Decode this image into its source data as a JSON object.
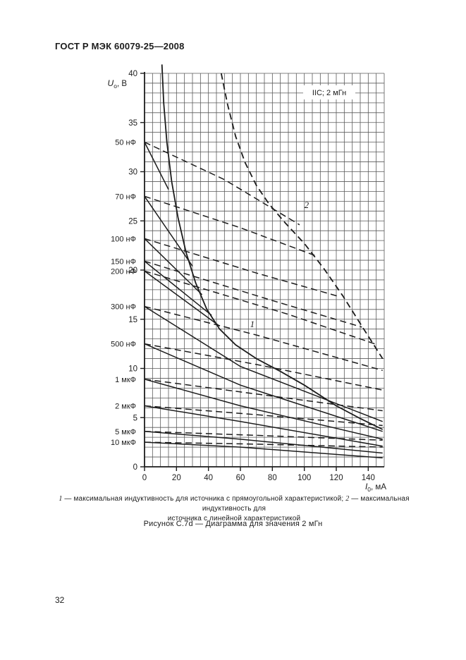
{
  "page": {
    "header": "ГОСТ Р МЭК 60079-25—2008",
    "page_number": "32"
  },
  "caption": {
    "item1_num": "1",
    "item1_text": " — максимальная индуктивность для источника с прямоугольной характеристикой; ",
    "item2_num": "2",
    "item2_text": " — максимальная индуктивность для",
    "line2": "источника с линейной характеристикой"
  },
  "figure_caption": "Рисунок С.7d — Диаграмма для значения 2 мГн",
  "chart_data": {
    "type": "line",
    "annotation_box": "IIC; 2 мГн",
    "ylabel": {
      "symbol": "U",
      "subscript": "o",
      "unit": ", В"
    },
    "xlabel": {
      "symbol": "I",
      "subscript": "0",
      "unit": ", мА"
    },
    "xlim": [
      0,
      150
    ],
    "ylim": [
      0,
      40
    ],
    "xticks": [
      0,
      20,
      40,
      60,
      80,
      100,
      120,
      140
    ],
    "yticks": [
      0,
      5,
      10,
      15,
      20,
      25,
      30,
      35,
      40
    ],
    "x_minor_step": 5,
    "y_minor_step": 1,
    "grid": "on",
    "limit_curves": [
      {
        "label": "1",
        "style": "solid",
        "desc": "максимальная индуктивность для источника с прямоугольной характеристикой",
        "label_pos": [
          66,
          14.2
        ],
        "points": [
          [
            10.9,
            40.9
          ],
          [
            12,
            37
          ],
          [
            14,
            33
          ],
          [
            17,
            29
          ],
          [
            21,
            25.3
          ],
          [
            26,
            21.8
          ],
          [
            32,
            18.7
          ],
          [
            39,
            16
          ],
          [
            47,
            14
          ],
          [
            57,
            12.4
          ],
          [
            70,
            11
          ],
          [
            85,
            9.7
          ],
          [
            100,
            8.3
          ],
          [
            120,
            6.2
          ],
          [
            135,
            4.9
          ],
          [
            149,
            3.8
          ]
        ]
      },
      {
        "label": "2",
        "style": "dashed",
        "desc": "максимальная индуктивность для источника с линейной характеристикой",
        "label_pos": [
          100,
          26.3
        ],
        "points": [
          [
            48,
            40
          ],
          [
            52,
            36.8
          ],
          [
            57,
            33.6
          ],
          [
            63,
            30.9
          ],
          [
            70,
            28.6
          ],
          [
            78,
            26.7
          ],
          [
            88,
            24.8
          ],
          [
            100,
            22.7
          ],
          [
            112,
            20.2
          ],
          [
            124,
            17.4
          ],
          [
            136,
            14.3
          ],
          [
            149,
            11
          ]
        ]
      }
    ],
    "capacitance_curves": [
      {
        "label": "50 нФ",
        "u0": 33.0,
        "solid": [
          [
            0,
            33.0
          ],
          [
            15,
            28.2
          ]
        ],
        "dashed": [
          [
            0,
            33.0
          ],
          [
            50,
            29.2
          ],
          [
            97,
            24.6
          ]
        ]
      },
      {
        "label": "70 нФ",
        "u0": 27.5,
        "solid": [
          [
            0,
            27.5
          ],
          [
            30,
            20.4
          ]
        ],
        "dashed": [
          [
            0,
            27.5
          ],
          [
            60,
            24.3
          ],
          [
            108,
            21.4
          ]
        ]
      },
      {
        "label": "100 нФ",
        "u0": 23.2,
        "solid": [
          [
            0,
            23.2
          ],
          [
            36,
            17.5
          ]
        ],
        "dashed": [
          [
            0,
            23.2
          ],
          [
            70,
            19.7
          ],
          [
            122,
            17.3
          ]
        ]
      },
      {
        "label": "150 нФ",
        "u0": 20.9,
        "solid": [
          [
            0,
            20.9
          ],
          [
            42,
            15.4
          ]
        ],
        "dashed": [
          [
            0,
            20.9
          ],
          [
            80,
            16.9
          ],
          [
            136,
            14.2
          ]
        ]
      },
      {
        "label": "200 нФ",
        "u0": 19.9,
        "solid": [
          [
            0,
            19.9
          ],
          [
            47,
            14.3
          ]
        ],
        "dashed": [
          [
            0,
            19.9
          ],
          [
            90,
            15.5
          ],
          [
            144,
            12.5
          ]
        ]
      },
      {
        "label": "300 нФ",
        "u0": 16.3,
        "solid": [
          [
            0,
            16.3
          ],
          [
            60,
            10.2
          ],
          [
            149,
            4.6
          ]
        ],
        "dashed": [
          [
            0,
            16.3
          ],
          [
            70,
            13.4
          ],
          [
            149,
            9.8
          ]
        ]
      },
      {
        "label": "500 нФ",
        "u0": 12.5,
        "solid": [
          [
            0,
            12.5
          ],
          [
            60,
            8.3
          ],
          [
            149,
            3.6
          ]
        ],
        "dashed": [
          [
            0,
            12.5
          ],
          [
            70,
            10.4
          ],
          [
            149,
            7.8
          ]
        ]
      },
      {
        "label": "1 мкФ",
        "u0": 8.9,
        "solid": [
          [
            0,
            8.9
          ],
          [
            60,
            6.2
          ],
          [
            149,
            2.8
          ]
        ],
        "dashed": [
          [
            0,
            8.9
          ],
          [
            70,
            7.4
          ],
          [
            149,
            5.7
          ]
        ]
      },
      {
        "label": "2 мкФ",
        "u0": 6.2,
        "solid": [
          [
            0,
            6.2
          ],
          [
            60,
            4.6
          ],
          [
            149,
            2.1
          ]
        ],
        "dashed": [
          [
            0,
            6.2
          ],
          [
            70,
            5.3
          ],
          [
            149,
            4.2
          ]
        ]
      },
      {
        "label": "5 мкФ",
        "u0": 3.6,
        "solid": [
          [
            0,
            3.6
          ],
          [
            60,
            2.8
          ],
          [
            149,
            1.4
          ]
        ],
        "dashed": [
          [
            0,
            3.6
          ],
          [
            70,
            3.2
          ],
          [
            149,
            2.7
          ]
        ]
      },
      {
        "label": "10 мкФ",
        "u0": 2.5,
        "solid": [
          [
            0,
            2.5
          ],
          [
            60,
            2.0
          ],
          [
            149,
            0.9
          ]
        ],
        "dashed": [
          [
            0,
            2.5
          ],
          [
            70,
            2.3
          ],
          [
            149,
            2.0
          ]
        ]
      }
    ],
    "colors": {
      "ink": "#1c1c1c",
      "grid": "#5a5a5a",
      "background": "#ffffff"
    }
  }
}
